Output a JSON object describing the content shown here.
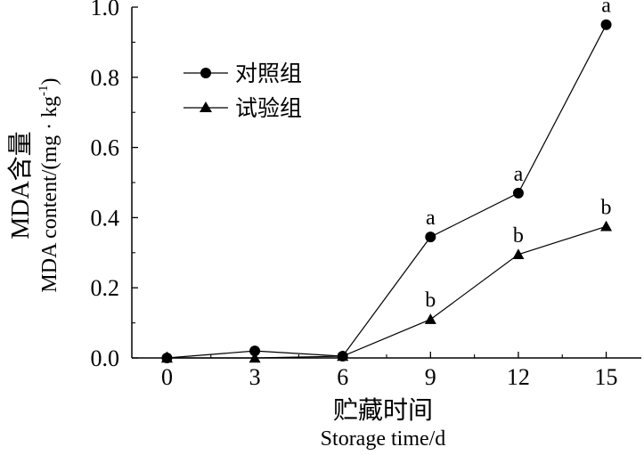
{
  "chart_data": {
    "type": "line",
    "x": [
      0,
      3,
      6,
      9,
      12,
      15
    ],
    "x_ticks": [
      "0",
      "3",
      "6",
      "9",
      "12",
      "15"
    ],
    "y_ticks": [
      "0.0",
      "0.2",
      "0.4",
      "0.6",
      "0.8",
      "1.0"
    ],
    "ylim": [
      0,
      1.0
    ],
    "xlim": [
      -1.2,
      16.2
    ],
    "xlabel_cn": "贮藏时间",
    "xlabel_en": "Storage time/d",
    "ylabel_cn": "MDA含量",
    "ylabel_en": "MDA content/(mg · kg",
    "ylabel_en_sup": "-1",
    "ylabel_en_end": ")",
    "legend_position": "upper-left",
    "series": [
      {
        "name": "对照组",
        "marker": "circle",
        "values": [
          0.0,
          0.02,
          0.005,
          0.345,
          0.47,
          0.95
        ],
        "sig_labels": [
          "",
          "",
          "",
          "a",
          "a",
          "a"
        ]
      },
      {
        "name": "试验组",
        "marker": "triangle",
        "values": [
          0.0,
          0.0,
          0.005,
          0.11,
          0.295,
          0.375
        ],
        "sig_labels": [
          "",
          "",
          "",
          "b",
          "b",
          "b"
        ]
      }
    ]
  }
}
